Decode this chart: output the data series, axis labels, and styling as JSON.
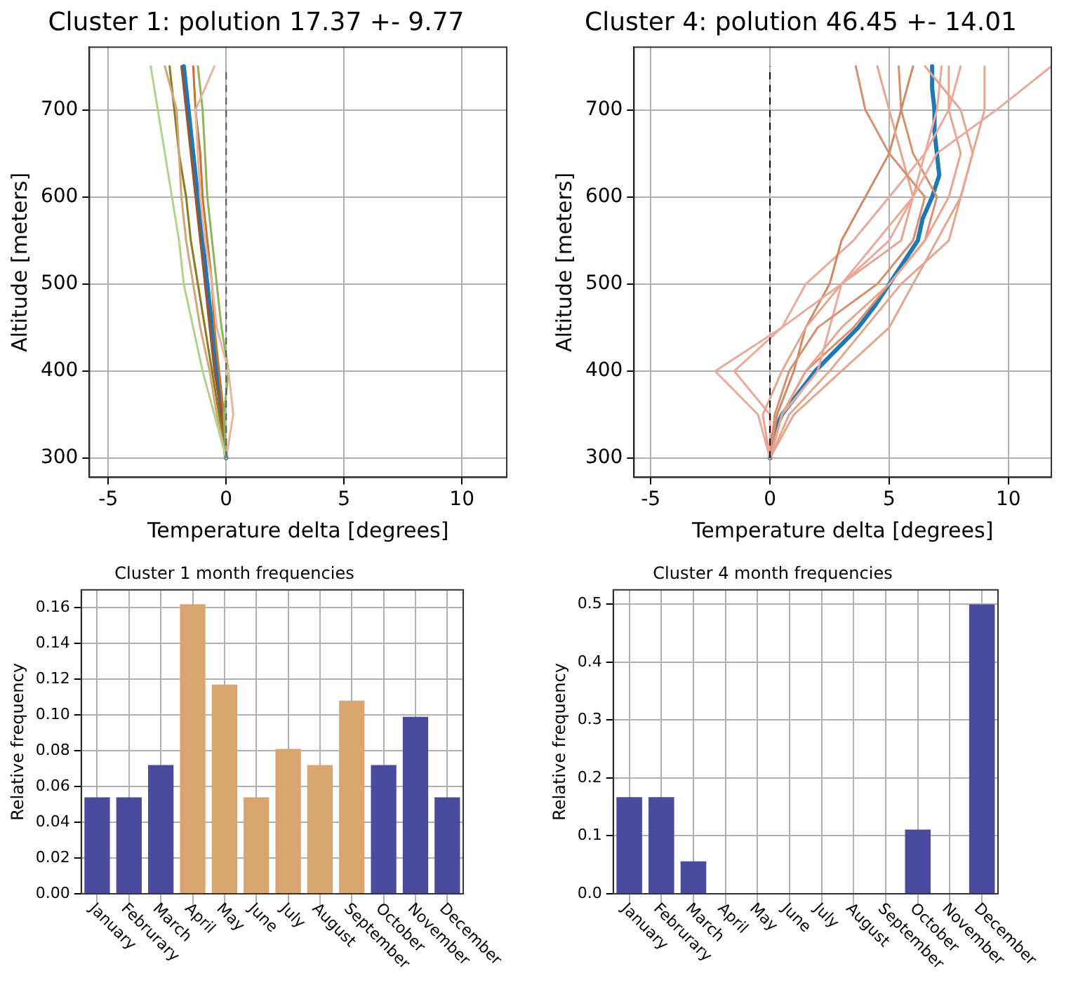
{
  "chart_data": [
    {
      "type": "line",
      "title": "Cluster 1: polution 17.37 +- 9.77",
      "xlabel": "Temperature delta [degrees]",
      "ylabel": "Altitude [meters]",
      "xlim": [
        -5.8,
        11.9
      ],
      "ylim": [
        278,
        772
      ],
      "xticks": [
        -5,
        0,
        5,
        10
      ],
      "yticks": [
        300,
        400,
        500,
        600,
        700
      ],
      "grid": true,
      "marker": "none",
      "line_style": "solid",
      "ref_lines": [
        {
          "axis": "x",
          "value": 0,
          "color": "#555555",
          "line_style": "dashed"
        }
      ],
      "series": [
        {
          "color": "#b5d08a",
          "x": [
            0,
            -0.5,
            -1.0,
            -1.4,
            -1.8,
            -2.0,
            -2.3,
            -2.6,
            -2.9,
            -3.2
          ],
          "values": [
            300,
            350,
            400,
            450,
            500,
            550,
            600,
            650,
            700,
            750
          ]
        },
        {
          "color": "#e9b49c",
          "x": [
            0,
            0.3,
            0.1,
            -0.4,
            -0.6,
            -0.9,
            -1.1,
            -1.2,
            -1.3,
            -0.5
          ],
          "values": [
            300,
            350,
            400,
            450,
            500,
            550,
            600,
            650,
            700,
            750
          ]
        },
        {
          "color": "#8fb35a",
          "x": [
            0,
            -0.1,
            0.1,
            -0.2,
            -0.4,
            -0.6,
            -0.8,
            -0.9,
            -1.0,
            -1.2
          ],
          "values": [
            300,
            350,
            400,
            450,
            500,
            550,
            600,
            650,
            700,
            750
          ]
        },
        {
          "color": "#d2a679",
          "x": [
            0,
            -0.4,
            -0.7,
            -1.1,
            -1.4,
            -1.7,
            -1.9,
            -2.0,
            -2.1,
            -2.6
          ],
          "values": [
            300,
            350,
            400,
            450,
            500,
            550,
            600,
            650,
            700,
            750
          ]
        },
        {
          "color": "#8b7a1e",
          "x": [
            0,
            -0.3,
            -0.6,
            -0.9,
            -1.2,
            -1.5,
            -1.7,
            -2.0,
            -2.2,
            -2.4
          ],
          "values": [
            300,
            350,
            400,
            450,
            500,
            550,
            600,
            650,
            700,
            750
          ]
        },
        {
          "color": "#c8742e",
          "x": [
            0,
            -0.1,
            -0.3,
            -0.5,
            -0.6,
            -0.8,
            -1.0,
            -1.1,
            -1.3,
            -1.4
          ],
          "values": [
            300,
            350,
            400,
            450,
            500,
            550,
            600,
            650,
            700,
            750
          ]
        },
        {
          "color": "#a0522d",
          "x": [
            0,
            -0.2,
            -0.5,
            -0.7,
            -0.9,
            -1.1,
            -1.3,
            -1.5,
            -1.7,
            -1.9
          ],
          "values": [
            300,
            350,
            400,
            450,
            500,
            550,
            600,
            650,
            700,
            750
          ]
        },
        {
          "color": "#1f77b4",
          "x": [
            0,
            -0.2,
            -0.4,
            -0.6,
            -0.8,
            -1.0,
            -1.2,
            -1.4,
            -1.6,
            -1.8
          ],
          "values": [
            300,
            350,
            400,
            450,
            500,
            550,
            600,
            650,
            700,
            750
          ]
        }
      ]
    },
    {
      "type": "line",
      "title": "Cluster 4: polution 46.45 +- 14.01",
      "xlabel": "Temperature delta [degrees]",
      "ylabel": "Altitude [meters]",
      "xlim": [
        -5.7,
        11.8
      ],
      "ylim": [
        278,
        772
      ],
      "xticks": [
        -5,
        0,
        5,
        10
      ],
      "yticks": [
        300,
        400,
        500,
        600,
        700
      ],
      "grid": true,
      "marker": "none",
      "line_style": "solid",
      "ref_lines": [
        {
          "axis": "x",
          "value": 0,
          "color": "#000000",
          "line_style": "dashed"
        }
      ],
      "series": [
        {
          "color": "#eba99a",
          "x": [
            0,
            -0.5,
            -2.3,
            0.5,
            3,
            4.5,
            6,
            7,
            9.5,
            11.8
          ],
          "values": [
            300,
            350,
            400,
            450,
            500,
            550,
            600,
            650,
            700,
            750
          ]
        },
        {
          "color": "#e6a58e",
          "x": [
            0,
            0.5,
            1.5,
            3,
            5,
            6.5,
            7.5,
            8,
            7.5,
            7.5
          ],
          "values": [
            300,
            350,
            400,
            450,
            500,
            550,
            600,
            650,
            700,
            750
          ]
        },
        {
          "color": "#d98f6e",
          "x": [
            0,
            0.2,
            0.8,
            2,
            4.5,
            6,
            6.5,
            5,
            4,
            3.6
          ],
          "values": [
            300,
            350,
            400,
            450,
            500,
            550,
            600,
            650,
            700,
            750
          ]
        },
        {
          "color": "#e6a58e",
          "x": [
            0,
            1,
            3,
            5,
            6,
            7,
            8,
            8.5,
            8,
            6.5
          ],
          "values": [
            300,
            350,
            400,
            450,
            500,
            550,
            600,
            650,
            700,
            750
          ]
        },
        {
          "color": "#eba99a",
          "x": [
            0,
            0.5,
            2,
            2.5,
            3,
            5,
            6,
            6.5,
            7,
            7.2
          ],
          "values": [
            300,
            350,
            400,
            450,
            500,
            550,
            600,
            650,
            700,
            750
          ]
        },
        {
          "color": "#e6a58e",
          "x": [
            0,
            -0.3,
            0.5,
            1.5,
            3,
            5.5,
            6,
            5.5,
            5,
            4.5
          ],
          "values": [
            300,
            350,
            400,
            450,
            500,
            550,
            600,
            650,
            700,
            750
          ]
        },
        {
          "color": "#e6a58e",
          "x": [
            0,
            0.8,
            2.5,
            4,
            5.5,
            7.5,
            8,
            8.5,
            9,
            9
          ],
          "values": [
            300,
            350,
            400,
            450,
            500,
            550,
            600,
            650,
            700,
            750
          ]
        },
        {
          "color": "#cf8a63",
          "x": [
            0,
            0.3,
            1,
            1.5,
            2.5,
            3,
            4,
            5,
            5.5,
            6
          ],
          "values": [
            300,
            350,
            400,
            450,
            500,
            550,
            600,
            650,
            700,
            750
          ]
        },
        {
          "color": "#eba99a",
          "x": [
            0,
            0,
            -1.5,
            0.5,
            1.5,
            3.5,
            5,
            6.5,
            7.5,
            8
          ],
          "values": [
            300,
            350,
            400,
            450,
            500,
            550,
            600,
            650,
            700,
            750
          ]
        },
        {
          "color": "#d98f6e",
          "x": [
            0,
            0.5,
            1.5,
            3.5,
            5,
            6.5,
            7,
            6,
            5.5,
            5.4
          ],
          "values": [
            300,
            350,
            400,
            450,
            500,
            550,
            600,
            650,
            700,
            750
          ]
        },
        {
          "color": "#1f77b4",
          "x": [
            0,
            0.1,
            0.5,
            1.2,
            1.9,
            2.8,
            3.7,
            4.4,
            5.0,
            5.6,
            6.2,
            6.4,
            6.8,
            7.1,
            7.0,
            6.9,
            6.9,
            6.8,
            6.8
          ],
          "values": [
            300,
            325,
            350,
            375,
            400,
            425,
            450,
            475,
            500,
            525,
            550,
            575,
            600,
            625,
            650,
            675,
            700,
            725,
            750
          ]
        }
      ]
    },
    {
      "type": "bar",
      "title": "Cluster 1 month frequencies",
      "ylabel": "Relative frequency",
      "categories": [
        "January",
        "Februrary",
        "March",
        "April",
        "May",
        "June",
        "July",
        "August",
        "September",
        "October",
        "November",
        "December"
      ],
      "values": [
        0.054,
        0.054,
        0.072,
        0.162,
        0.117,
        0.054,
        0.081,
        0.072,
        0.108,
        0.072,
        0.099,
        0.054
      ],
      "colors": [
        "#4a4a9e",
        "#4a4a9e",
        "#4a4a9e",
        "#d8a571",
        "#d8a571",
        "#d8a571",
        "#d8a571",
        "#d8a571",
        "#d8a571",
        "#4a4a9e",
        "#4a4a9e",
        "#4a4a9e"
      ],
      "ylim": [
        0,
        0.17
      ],
      "yticks": [
        {
          "value": 0,
          "label": "0.00"
        },
        {
          "value": 0.02,
          "label": "0.02"
        },
        {
          "value": 0.04,
          "label": "0.04"
        },
        {
          "value": 0.06,
          "label": "0.06"
        },
        {
          "value": 0.08,
          "label": "0.08"
        },
        {
          "value": 0.1,
          "label": "0.10"
        },
        {
          "value": 0.12,
          "label": "0.12"
        },
        {
          "value": 0.14,
          "label": "0.14"
        },
        {
          "value": 0.16,
          "label": "0.16"
        }
      ],
      "grid": true
    },
    {
      "type": "bar",
      "title": "Cluster 4 month frequencies",
      "ylabel": "Relative frequency",
      "categories": [
        "January",
        "Februrary",
        "March",
        "April",
        "May",
        "June",
        "July",
        "August",
        "September",
        "October",
        "November",
        "December"
      ],
      "values": [
        0.167,
        0.167,
        0.056,
        0,
        0,
        0,
        0,
        0,
        0,
        0.111,
        0,
        0.5
      ],
      "color": "#4a4a9e",
      "ylim": [
        0,
        0.525
      ],
      "yticks": [
        {
          "value": 0,
          "label": "0.0"
        },
        {
          "value": 0.1,
          "label": "0.1"
        },
        {
          "value": 0.2,
          "label": "0.2"
        },
        {
          "value": 0.3,
          "label": "0.3"
        },
        {
          "value": 0.4,
          "label": "0.4"
        },
        {
          "value": 0.5,
          "label": "0.5"
        }
      ],
      "grid": true
    }
  ]
}
